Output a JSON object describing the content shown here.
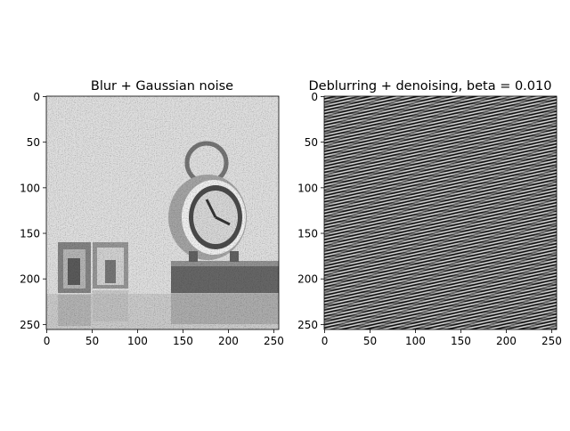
{
  "figure": {
    "background": "#ffffff"
  },
  "chart_data": [
    {
      "type": "heatmap",
      "title": "Blur + Gaussian noise",
      "xlabel": "",
      "ylabel": "",
      "xlim": [
        0,
        255
      ],
      "ylim": [
        255,
        0
      ],
      "xticks": [
        0,
        50,
        100,
        150,
        200,
        250
      ],
      "yticks": [
        0,
        50,
        100,
        150,
        200,
        250
      ],
      "colormap": "gray",
      "grid": false,
      "image_content": "blurred noisy grayscale photo: two picture frames on the left, alarm clock on a book on the right"
    },
    {
      "type": "heatmap",
      "title": "Deblurring + denoising, beta = 0.010",
      "xlabel": "",
      "ylabel": "",
      "xlim": [
        0,
        255
      ],
      "ylim": [
        255,
        0
      ],
      "xticks": [
        0,
        50,
        100,
        150,
        200,
        250
      ],
      "yticks": [
        0,
        50,
        100,
        150,
        200,
        250
      ],
      "colormap": "gray",
      "grid": false,
      "image_content": "high-frequency diagonal stripe noise pattern"
    }
  ]
}
